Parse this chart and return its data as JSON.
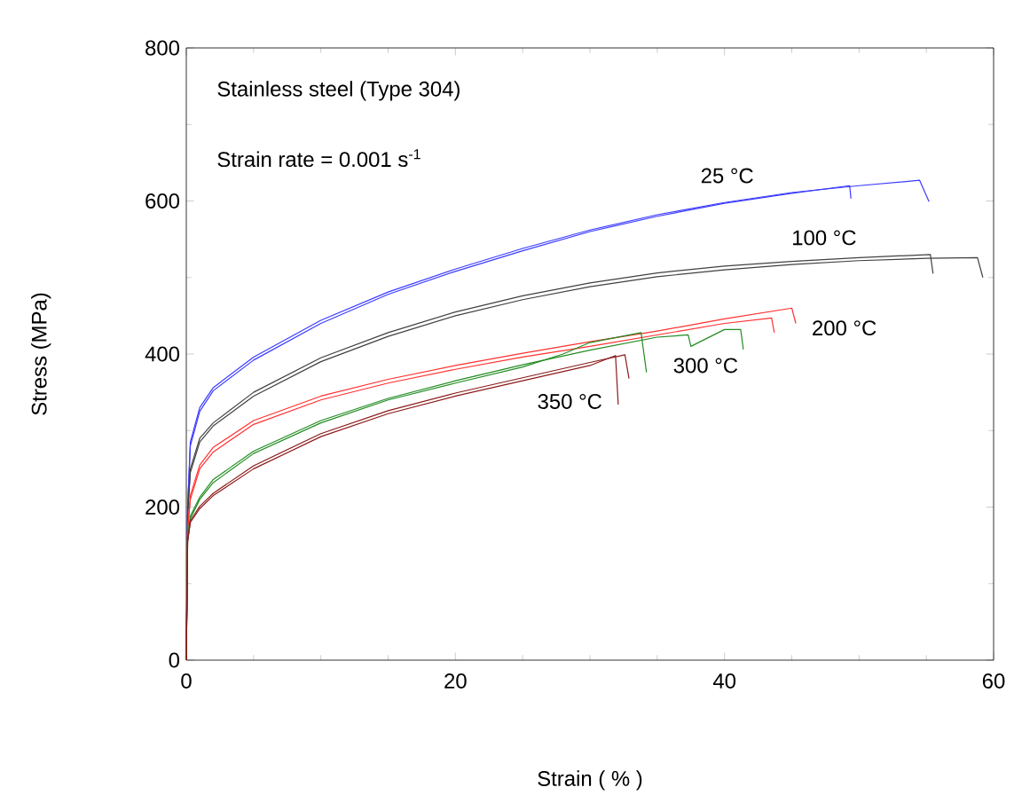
{
  "chart_data": {
    "type": "line",
    "xlabel": "Strain ( % )",
    "ylabel": "Stress (MPa)",
    "xlim": [
      0,
      60
    ],
    "ylim": [
      0,
      800
    ],
    "xticks": [
      0,
      20,
      40,
      60
    ],
    "yticks": [
      0,
      200,
      400,
      600,
      800
    ],
    "annotations": [
      "Stainless steel (Type 304)",
      "Strain rate = 0.001 s$^{-1}$"
    ],
    "series": [
      {
        "name": "25 °C",
        "color": "#3b3bff",
        "x": [
          0,
          0.1,
          0.3,
          1,
          2,
          5,
          10,
          15,
          20,
          25,
          30,
          35,
          40,
          45,
          49.3,
          49.4
        ],
        "values": [
          0,
          200,
          280,
          325,
          352,
          392,
          440,
          478,
          508,
          535,
          560,
          580,
          597,
          610,
          620,
          603
        ]
      },
      {
        "color": "#3b3bff",
        "x": [
          0,
          0.1,
          0.3,
          1,
          2,
          5,
          10,
          15,
          20,
          25,
          30,
          35,
          40,
          45,
          50,
          54.5,
          55.2
        ],
        "values": [
          0,
          200,
          285,
          330,
          356,
          396,
          444,
          481,
          511,
          538,
          562,
          582,
          598,
          611,
          620,
          627,
          599
        ]
      },
      {
        "name": "100 °C",
        "color": "#404040",
        "x": [
          0,
          0.1,
          0.3,
          1,
          2,
          5,
          10,
          15,
          20,
          25,
          30,
          35,
          40,
          45,
          50,
          55.3,
          55.5
        ],
        "values": [
          0,
          190,
          250,
          290,
          310,
          350,
          395,
          428,
          455,
          476,
          493,
          506,
          515,
          521,
          526,
          530,
          505
        ]
      },
      {
        "color": "#404040",
        "x": [
          0,
          0.1,
          0.3,
          1,
          2,
          5,
          10,
          15,
          20,
          25,
          30,
          35,
          40,
          45,
          50,
          55,
          58.8,
          59.2
        ],
        "values": [
          0,
          190,
          245,
          285,
          306,
          345,
          390,
          423,
          450,
          471,
          488,
          501,
          510,
          517,
          522,
          525,
          526,
          500
        ]
      },
      {
        "color": "#ff3030",
        "x": [
          0,
          0.1,
          0.3,
          1,
          2,
          5,
          10,
          15,
          20,
          25,
          30,
          35,
          40,
          43.5,
          43.7
        ],
        "values": [
          0,
          170,
          210,
          250,
          272,
          308,
          340,
          362,
          380,
          396,
          410,
          425,
          440,
          447,
          428
        ]
      },
      {
        "name": "200 °C",
        "color": "#ff3030",
        "x": [
          0,
          0.1,
          0.3,
          1,
          2,
          5,
          10,
          15,
          20,
          25,
          30,
          35,
          40,
          45,
          45.3
        ],
        "values": [
          0,
          170,
          215,
          255,
          278,
          313,
          345,
          367,
          385,
          401,
          416,
          430,
          446,
          460,
          440
        ]
      },
      {
        "color": "#228b22",
        "x": [
          0,
          0.1,
          0.3,
          1,
          2,
          5,
          10,
          15,
          20,
          25,
          28,
          30,
          33.8,
          34.2
        ],
        "values": [
          0,
          160,
          185,
          210,
          232,
          270,
          310,
          340,
          362,
          383,
          400,
          415,
          428,
          376
        ]
      },
      {
        "name": "300 °C",
        "color": "#228b22",
        "x": [
          0,
          0.1,
          0.3,
          1,
          2,
          5,
          10,
          15,
          20,
          25,
          30,
          35,
          37.3,
          37.5,
          40,
          41.2,
          41.4
        ],
        "values": [
          0,
          160,
          188,
          213,
          236,
          273,
          313,
          342,
          365,
          386,
          405,
          422,
          425,
          410,
          432,
          432,
          406
        ]
      },
      {
        "name": "350 °C",
        "color": "#8b1a1a",
        "x": [
          0,
          0.1,
          0.3,
          1,
          2,
          5,
          10,
          15,
          20,
          25,
          30,
          31.9,
          32.1
        ],
        "values": [
          0,
          155,
          180,
          198,
          215,
          250,
          292,
          322,
          345,
          365,
          385,
          398,
          334
        ]
      },
      {
        "color": "#8b1a1a",
        "x": [
          0,
          0.1,
          0.3,
          1,
          2,
          5,
          10,
          15,
          20,
          25,
          30,
          32.6,
          32.9
        ],
        "values": [
          0,
          155,
          182,
          201,
          218,
          254,
          296,
          326,
          349,
          369,
          389,
          399,
          368
        ]
      }
    ]
  }
}
